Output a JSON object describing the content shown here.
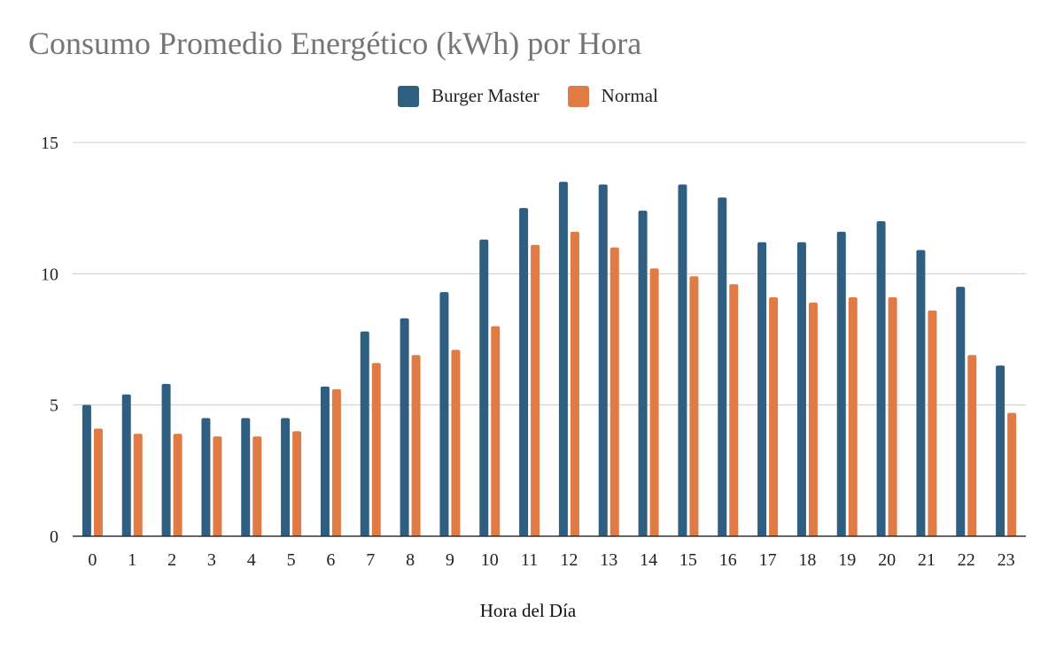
{
  "chart_data": {
    "type": "bar",
    "title": "Consumo Promedio Energético (kWh) por Hora",
    "xlabel": "Hora del Día",
    "ylabel": "",
    "categories": [
      "0",
      "1",
      "2",
      "3",
      "4",
      "5",
      "6",
      "7",
      "8",
      "9",
      "10",
      "11",
      "12",
      "13",
      "14",
      "15",
      "16",
      "17",
      "18",
      "19",
      "20",
      "21",
      "22",
      "23"
    ],
    "series": [
      {
        "name": "Burger Master",
        "color": "#2e5e80",
        "values": [
          5.0,
          5.4,
          5.8,
          4.5,
          4.5,
          4.5,
          5.7,
          7.8,
          8.3,
          9.3,
          11.3,
          12.5,
          13.5,
          13.4,
          12.4,
          13.4,
          12.9,
          11.2,
          11.2,
          11.6,
          12.0,
          10.9,
          9.5,
          6.5
        ]
      },
      {
        "name": "Normal",
        "color": "#e07b46",
        "values": [
          4.1,
          3.9,
          3.9,
          3.8,
          3.8,
          4.0,
          5.6,
          6.6,
          6.9,
          7.1,
          8.0,
          11.1,
          11.6,
          11.0,
          10.2,
          9.9,
          9.6,
          9.1,
          8.9,
          9.1,
          9.1,
          8.6,
          6.9,
          4.7
        ]
      }
    ],
    "ylim": [
      0,
      15
    ],
    "yticks": [
      0,
      5,
      10,
      15
    ],
    "grid": true,
    "legend_position": "top-center"
  }
}
